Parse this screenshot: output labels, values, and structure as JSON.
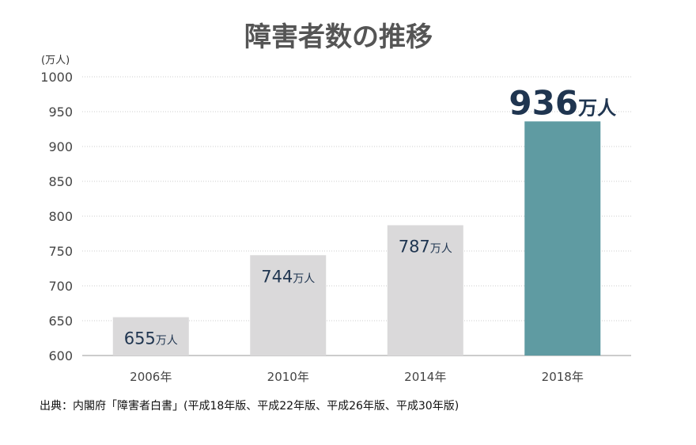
{
  "chart_data": {
    "type": "bar",
    "title": "障害者数の推移",
    "ylabel": "(万人)",
    "ylim": [
      600,
      1000
    ],
    "yticks": [
      600,
      650,
      700,
      750,
      800,
      850,
      900,
      950,
      1000
    ],
    "categories": [
      "2006年",
      "2010年",
      "2014年",
      "2018年"
    ],
    "values": [
      655,
      744,
      787,
      936
    ],
    "data_label_unit": "万人",
    "grid": true,
    "legend": "none",
    "colors": {
      "normal": "#dad9da",
      "highlight": "#5f9ba2",
      "label": "#1f3550",
      "title": "#555555"
    },
    "highlight_index": 3
  },
  "source": "出典：内閣府「障害者白書」(平成18年版、平成22年版、平成26年版、平成30年版)"
}
